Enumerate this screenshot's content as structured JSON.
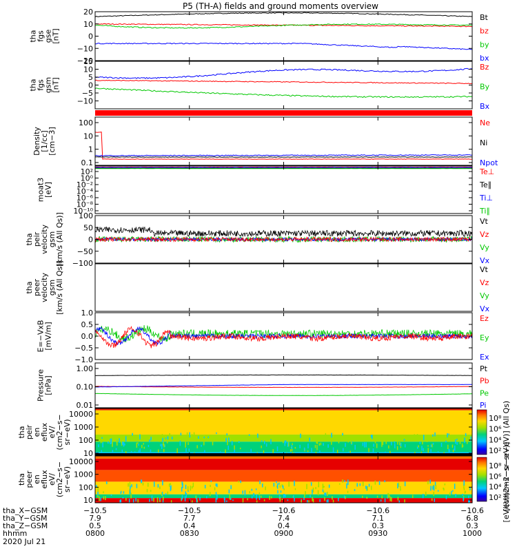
{
  "title": "P5 (TH-A) fields and ground moments overview",
  "colors": {
    "black": "#000000",
    "red": "#ff0000",
    "green": "#00c800",
    "blue": "#0000ff"
  },
  "panels": [
    {
      "id": "fgs-gse",
      "ylabel": [
        "tha",
        "fgs",
        "gse",
        "[nT]"
      ],
      "ylim": [
        -20,
        20
      ],
      "yticks": [
        "20",
        "10",
        "0",
        "−10",
        "−20"
      ],
      "legend": [
        {
          "t": "Bt",
          "c": "black"
        },
        {
          "t": "bz",
          "c": "red"
        },
        {
          "t": "by",
          "c": "green"
        },
        {
          "t": "bx",
          "c": "blue"
        }
      ]
    },
    {
      "id": "fgs-gsm",
      "ylabel": [
        "tha",
        "fgs",
        "gsm",
        "[nT]"
      ],
      "ylim": [
        -15,
        15
      ],
      "yticks": [
        "15",
        "10",
        "5",
        "0",
        "−5",
        "−10"
      ],
      "legend": [
        {
          "t": "Bz",
          "c": "red"
        },
        {
          "t": "By",
          "c": "green"
        },
        {
          "t": "Bx",
          "c": "blue"
        }
      ]
    },
    {
      "id": "density",
      "ylabel": [
        "Density",
        "[1/cc]",
        "[cm−3]"
      ],
      "yticks": [
        "100",
        "10",
        "1",
        "0.1"
      ],
      "legend": [
        {
          "t": "Ne",
          "c": "red"
        },
        {
          "t": "Ni",
          "c": "black"
        },
        {
          "t": "Npot",
          "c": "blue"
        }
      ]
    },
    {
      "id": "temp",
      "ylabel": [
        "moat3",
        "[eV]"
      ],
      "yticks": [
        "10²",
        "10⁰",
        "10⁻²",
        "10⁻⁴",
        "10⁻⁶",
        "10⁻⁸",
        "10⁻¹⁰"
      ],
      "legend": [
        {
          "t": "Te⊥",
          "c": "red"
        },
        {
          "t": "Te∥",
          "c": "black"
        },
        {
          "t": "Ti⊥",
          "c": "blue"
        },
        {
          "t": "Ti∥",
          "c": "green"
        }
      ]
    },
    {
      "id": "peir-vel",
      "ylabel": [
        "tha",
        "peir",
        "velocity",
        "gsm",
        "[km/s (All Qs)]"
      ],
      "ylim": [
        -100,
        100
      ],
      "yticks": [
        "100",
        "50",
        "0",
        "−50",
        "−100"
      ],
      "legend": [
        {
          "t": "Vt",
          "c": "black"
        },
        {
          "t": "Vz",
          "c": "red"
        },
        {
          "t": "Vy",
          "c": "green"
        },
        {
          "t": "Vx",
          "c": "blue"
        }
      ]
    },
    {
      "id": "peer-vel",
      "ylabel": [
        "tha",
        "peer",
        "velocity",
        "gsm",
        "[km/s (All Qs)]"
      ],
      "yticks": [],
      "legend": [
        {
          "t": "Vt",
          "c": "black"
        },
        {
          "t": "Vz",
          "c": "red"
        },
        {
          "t": "Vy",
          "c": "green"
        },
        {
          "t": "Vx",
          "c": "blue"
        }
      ]
    },
    {
      "id": "efield",
      "ylabel": [
        "E=−VxB",
        "[mV/m]"
      ],
      "ylim": [
        -1,
        1
      ],
      "yticks": [
        "1.0",
        "0.5",
        "0.0",
        "−0.5",
        "−1.0"
      ],
      "legend": [
        {
          "t": "Ez",
          "c": "red"
        },
        {
          "t": "Ey",
          "c": "green"
        },
        {
          "t": "Ex",
          "c": "blue"
        }
      ]
    },
    {
      "id": "pressure",
      "ylabel": [
        "Pressure",
        "[nPa]"
      ],
      "yticks": [
        "1.00",
        "0.10",
        "0.01"
      ],
      "legend": [
        {
          "t": "Pt",
          "c": "black"
        },
        {
          "t": "Pb",
          "c": "red"
        },
        {
          "t": "Pe",
          "c": "green"
        },
        {
          "t": "Pi",
          "c": "blue"
        }
      ]
    },
    {
      "id": "peir-eflux",
      "ylabel": [
        "tha",
        "peir",
        "en",
        "eflux",
        "eV/",
        "(cm2−s−",
        "sr−eV)"
      ],
      "yticks": [
        "10000",
        "1000",
        "100",
        "10"
      ],
      "cbar_ticks": [
        "10⁸",
        "10⁶",
        "10⁴",
        "10²"
      ],
      "cbar_label": "[eV/(cm2−s−sr−eV)] (All Qs)"
    },
    {
      "id": "peer-eflux",
      "ylabel": [
        "tha",
        "peer",
        "en",
        "eflux",
        "eV/",
        "(cm2−s−",
        "sr−eV)"
      ],
      "yticks": [
        "10000",
        "1000",
        "100",
        "10"
      ],
      "cbar_ticks": [
        "10⁸",
        "10⁶",
        "10⁴",
        "10²"
      ],
      "cbar_label": "[eV/(cm2−s−sr−eV)]"
    }
  ],
  "footer": {
    "rows": [
      {
        "label": "tha_X−GSM",
        "values": [
          "−10.5",
          "−10.5",
          "−10.6",
          "−10.6",
          "−10.6"
        ]
      },
      {
        "label": "tha_Y−GSM",
        "values": [
          "7.9",
          "7.7",
          "7.4",
          "7.1",
          "6.8"
        ]
      },
      {
        "label": "tha_Z−GSM",
        "values": [
          "0.5",
          "0.4",
          "0.4",
          "0.3",
          "0.3"
        ]
      },
      {
        "label": "hhmm",
        "values": [
          "0800",
          "0830",
          "0900",
          "0930",
          "1000"
        ]
      }
    ],
    "date": "2020 Jul 21"
  },
  "chart_data": {
    "type": "line",
    "title": "P5 (TH-A) fields and ground moments overview",
    "x": [
      "0800",
      "0830",
      "0900",
      "0930",
      "1000"
    ],
    "xlabel": "hhmm",
    "series": [
      {
        "name": "Bt",
        "values": [
          16,
          16,
          19,
          17,
          17
        ]
      },
      {
        "name": "bz",
        "values": [
          10,
          9,
          9,
          8,
          8
        ]
      },
      {
        "name": "by",
        "values": [
          10,
          7,
          8,
          8,
          8
        ]
      },
      {
        "name": "bx",
        "values": [
          -6,
          -6,
          -7,
          -12,
          -12
        ]
      },
      {
        "name": "Bz",
        "values": [
          5,
          7,
          8,
          9,
          11
        ]
      },
      {
        "name": "By",
        "values": [
          -1,
          -5,
          -5,
          -4,
          -7
        ]
      },
      {
        "name": "Bx",
        "values": [
          3,
          1,
          1,
          1,
          1
        ]
      },
      {
        "name": "Pt",
        "values": [
          0.3,
          0.32,
          0.33,
          0.32,
          0.32
        ]
      },
      {
        "name": "Pb",
        "values": [
          0.09,
          0.08,
          0.09,
          0.09,
          0.09
        ]
      },
      {
        "name": "Pe",
        "values": [
          0.04,
          0.04,
          0.03,
          0.04,
          0.04
        ]
      },
      {
        "name": "Pi",
        "values": [
          0.08,
          0.09,
          0.11,
          0.11,
          0.11
        ]
      }
    ]
  }
}
